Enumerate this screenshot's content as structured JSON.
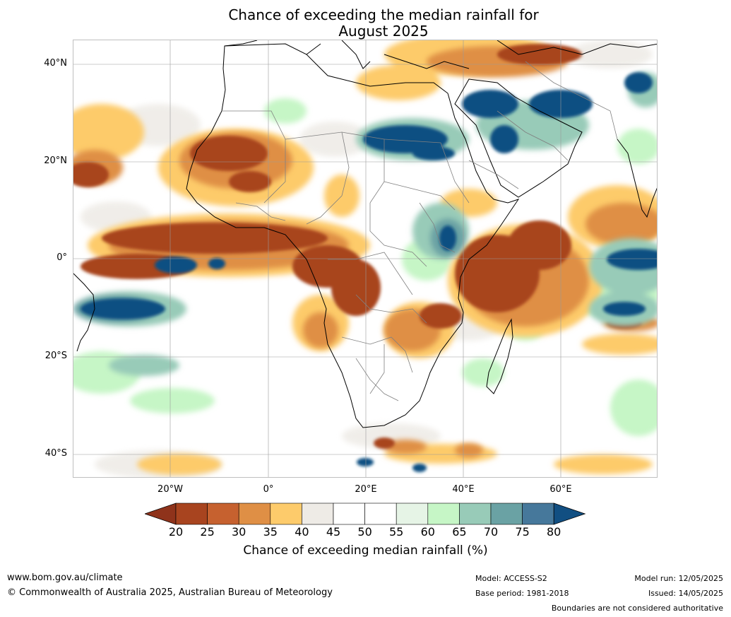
{
  "title": {
    "line1": "Chance of exceeding the median rainfall for",
    "line2": "August 2025"
  },
  "map": {
    "latitude_labels": [
      "40°N",
      "20°N",
      "0°",
      "20°S",
      "40°S"
    ],
    "longitude_labels": [
      "20°W",
      "0°",
      "20°E",
      "40°E",
      "60°E"
    ],
    "region": "Africa, Arabian Peninsula and surrounding oceans"
  },
  "colorbar": {
    "ticks": [
      "20",
      "25",
      "30",
      "35",
      "40",
      "45",
      "50",
      "55",
      "60",
      "65",
      "70",
      "75",
      "80"
    ],
    "colors": [
      "#8f331b",
      "#a8441f",
      "#c6612f",
      "#df8f45",
      "#fdcb6b",
      "#eeebe6",
      "#ffffff",
      "#ffffff",
      "#e6f4e6",
      "#c6f6c6",
      "#98cbb8",
      "#6aa2a4",
      "#46789b",
      "#114f82"
    ],
    "label": "Chance of exceeding median rainfall (%)"
  },
  "footer": {
    "website": "www.bom.gov.au/climate",
    "copyright": "© Commonwealth of Australia 2025, Australian Bureau of Meteorology",
    "model": "Model: ACCESS-S2",
    "base_period": "Base period: 1981-2018",
    "model_run": "Model run: 12/05/2025",
    "issued": "Issued: 14/05/2025",
    "disclaimer": "Boundaries are not considered authoritative"
  }
}
